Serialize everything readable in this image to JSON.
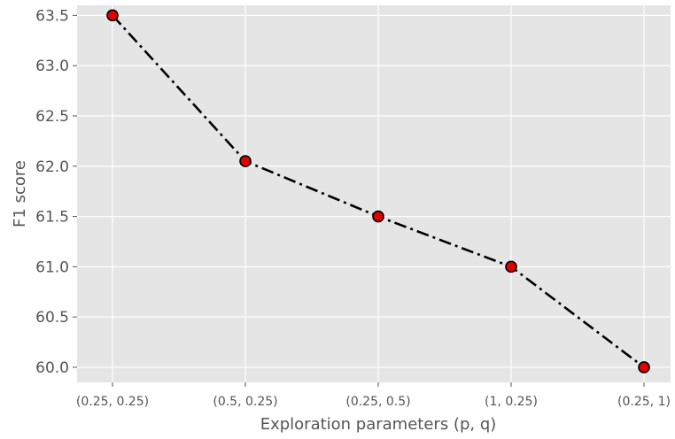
{
  "chart_data": {
    "type": "line",
    "title": "",
    "xlabel": "Exploration parameters (p, q)",
    "ylabel": "F1 score",
    "categories": [
      "(0.25, 0.25)",
      "(0.5, 0.25)",
      "(0.25, 0.5)",
      "(1, 0.25)",
      "(0.25, 1)"
    ],
    "series": [
      {
        "values": [
          63.5,
          62.05,
          61.5,
          61.0,
          60.0
        ]
      }
    ],
    "yticks": [
      "60.0",
      "60.5",
      "61.0",
      "61.5",
      "62.0",
      "62.5",
      "63.0",
      "63.5"
    ],
    "ylim": [
      59.85,
      63.6
    ],
    "grid": true,
    "colors": {
      "background": "#e5e5e5",
      "grid": "#ffffff",
      "line": "#000000",
      "marker_fill": "#e00000",
      "marker_edge": "#000000"
    }
  }
}
